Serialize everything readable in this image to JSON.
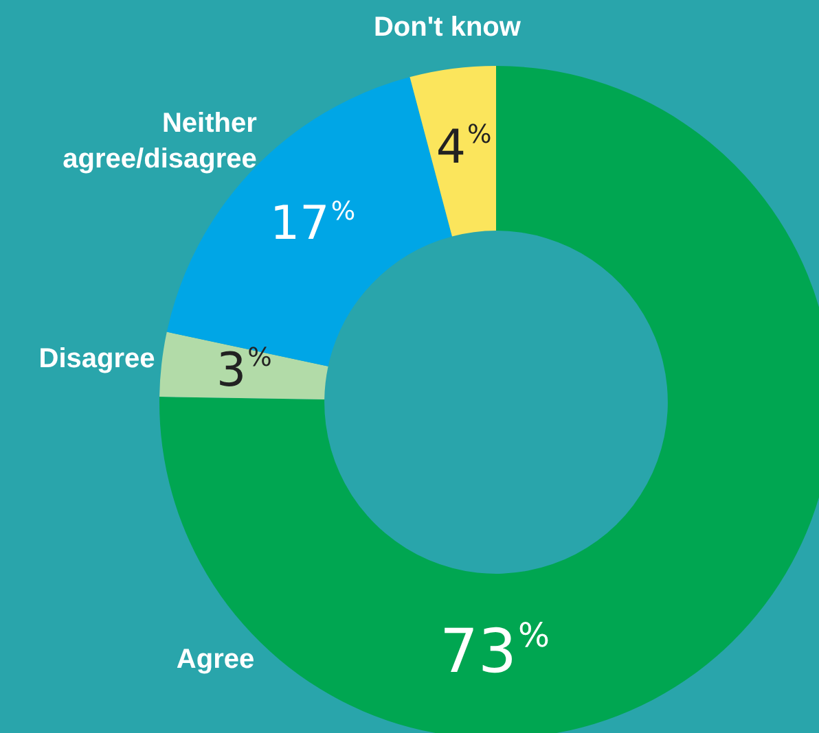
{
  "chart_data": {
    "type": "donut",
    "categories": [
      "Agree",
      "Disagree",
      "Neither agree/disagree",
      "Don't know"
    ],
    "values": [
      73,
      3,
      17,
      4
    ],
    "colors": [
      "#00a651",
      "#b2dba8",
      "#00a6e6",
      "#fbe55c"
    ],
    "value_labels": [
      "73%",
      "3%",
      "17%",
      "4%"
    ],
    "legend": false
  }
}
